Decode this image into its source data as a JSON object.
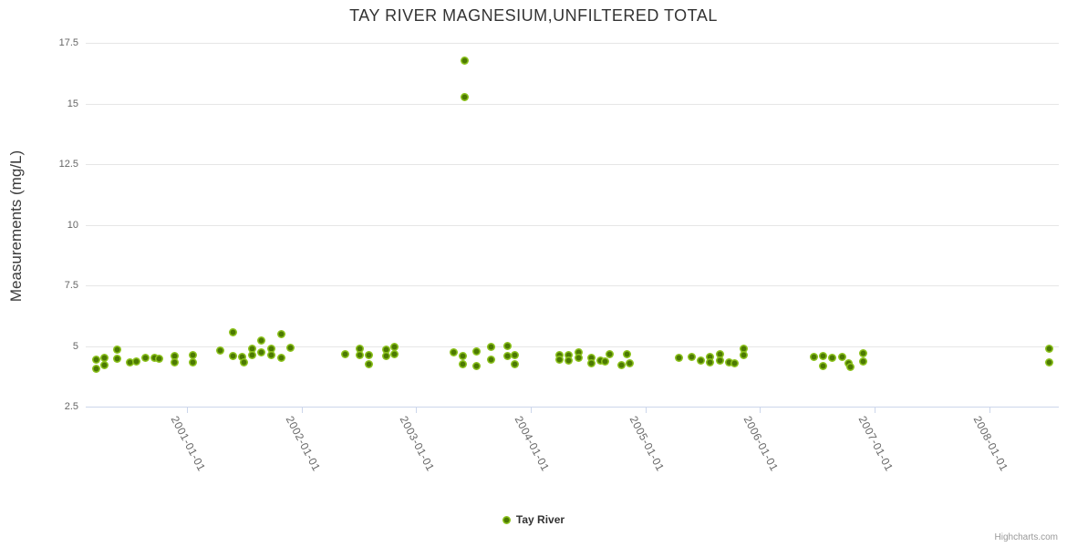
{
  "chart": {
    "title": "TAY RIVER MAGNESIUM,UNFILTERED TOTAL",
    "credits": "Highcharts.com"
  },
  "legend": {
    "series_label": "Tay River"
  },
  "colors": {
    "point_outer": "#8cc21d",
    "point_inner": "#4c7a02",
    "grid_line": "#e6e6e6",
    "axis_line": "#ccd6eb",
    "title_text": "#333333",
    "axis_label_text": "#666666",
    "legend_text": "#333333",
    "credits_text": "#999999"
  },
  "chart_data": {
    "type": "scatter",
    "title": "TAY RIVER MAGNESIUM,UNFILTERED TOTAL",
    "xlabel": "",
    "ylabel": "Measurements (mg/L)",
    "legend_position": "bottom-center",
    "grid": "horizontal-only",
    "ylim": [
      2.5,
      17.5
    ],
    "yticks": [
      2.5,
      5,
      7.5,
      10,
      12.5,
      15,
      17.5
    ],
    "xlim_decimal_years": [
      2000.117,
      2008.606
    ],
    "xticks": [
      {
        "year": 2001,
        "label": "2001-01-01"
      },
      {
        "year": 2002,
        "label": "2002-01-01"
      },
      {
        "year": 2003,
        "label": "2003-01-01"
      },
      {
        "year": 2004,
        "label": "2004-01-01"
      },
      {
        "year": 2005,
        "label": "2005-01-01"
      },
      {
        "year": 2006,
        "label": "2006-01-01"
      },
      {
        "year": 2007,
        "label": "2007-01-01"
      },
      {
        "year": 2008,
        "label": "2008-01-01"
      }
    ],
    "series": [
      {
        "name": "Tay River",
        "points_format": "[decimal_year, mg_per_L]",
        "points": [
          [
            2000.21,
            4.42
          ],
          [
            2000.21,
            4.05
          ],
          [
            2000.28,
            4.53
          ],
          [
            2000.28,
            4.2
          ],
          [
            2000.39,
            4.86
          ],
          [
            2000.39,
            4.49
          ],
          [
            2000.5,
            4.33
          ],
          [
            2000.56,
            4.37
          ],
          [
            2000.64,
            4.53
          ],
          [
            2000.72,
            4.53
          ],
          [
            2000.76,
            4.49
          ],
          [
            2000.89,
            4.58
          ],
          [
            2000.89,
            4.33
          ],
          [
            2001.05,
            4.63
          ],
          [
            2001.05,
            4.33
          ],
          [
            2001.29,
            4.81
          ],
          [
            2001.4,
            5.55
          ],
          [
            2001.4,
            4.58
          ],
          [
            2001.48,
            4.55
          ],
          [
            2001.5,
            4.31
          ],
          [
            2001.57,
            4.9
          ],
          [
            2001.57,
            4.63
          ],
          [
            2001.65,
            5.21
          ],
          [
            2001.65,
            4.75
          ],
          [
            2001.74,
            4.9
          ],
          [
            2001.74,
            4.63
          ],
          [
            2001.82,
            5.47
          ],
          [
            2001.82,
            4.53
          ],
          [
            2001.9,
            4.93
          ],
          [
            2002.38,
            4.68
          ],
          [
            2002.51,
            4.87
          ],
          [
            2002.51,
            4.63
          ],
          [
            2002.59,
            4.63
          ],
          [
            2002.59,
            4.25
          ],
          [
            2002.74,
            4.85
          ],
          [
            2002.74,
            4.57
          ],
          [
            2002.81,
            4.95
          ],
          [
            2002.81,
            4.65
          ],
          [
            2003.33,
            4.75
          ],
          [
            2003.41,
            4.6
          ],
          [
            2003.41,
            4.25
          ],
          [
            2003.42,
            16.75
          ],
          [
            2003.42,
            15.25
          ],
          [
            2003.53,
            4.78
          ],
          [
            2003.53,
            4.17
          ],
          [
            2003.65,
            4.97
          ],
          [
            2003.65,
            4.42
          ],
          [
            2003.8,
            5.0
          ],
          [
            2003.8,
            4.58
          ],
          [
            2003.86,
            4.62
          ],
          [
            2003.86,
            4.25
          ],
          [
            2004.25,
            4.62
          ],
          [
            2004.25,
            4.42
          ],
          [
            2004.33,
            4.62
          ],
          [
            2004.33,
            4.4
          ],
          [
            2004.42,
            4.75
          ],
          [
            2004.42,
            4.5
          ],
          [
            2004.53,
            4.52
          ],
          [
            2004.53,
            4.3
          ],
          [
            2004.61,
            4.4
          ],
          [
            2004.65,
            4.36
          ],
          [
            2004.69,
            4.65
          ],
          [
            2004.79,
            4.21
          ],
          [
            2004.84,
            4.67
          ],
          [
            2004.86,
            4.27
          ],
          [
            2005.29,
            4.5
          ],
          [
            2005.4,
            4.55
          ],
          [
            2005.48,
            4.4
          ],
          [
            2005.56,
            4.55
          ],
          [
            2005.56,
            4.33
          ],
          [
            2005.65,
            4.67
          ],
          [
            2005.65,
            4.4
          ],
          [
            2005.73,
            4.33
          ],
          [
            2005.78,
            4.3
          ],
          [
            2005.86,
            4.89
          ],
          [
            2005.86,
            4.62
          ],
          [
            2006.47,
            4.55
          ],
          [
            2006.55,
            4.6
          ],
          [
            2006.55,
            4.19
          ],
          [
            2006.63,
            4.5
          ],
          [
            2006.72,
            4.56
          ],
          [
            2006.77,
            4.28
          ],
          [
            2006.79,
            4.15
          ],
          [
            2006.9,
            4.69
          ],
          [
            2006.9,
            4.35
          ],
          [
            2008.52,
            4.9
          ],
          [
            2008.52,
            4.33
          ]
        ]
      }
    ]
  }
}
